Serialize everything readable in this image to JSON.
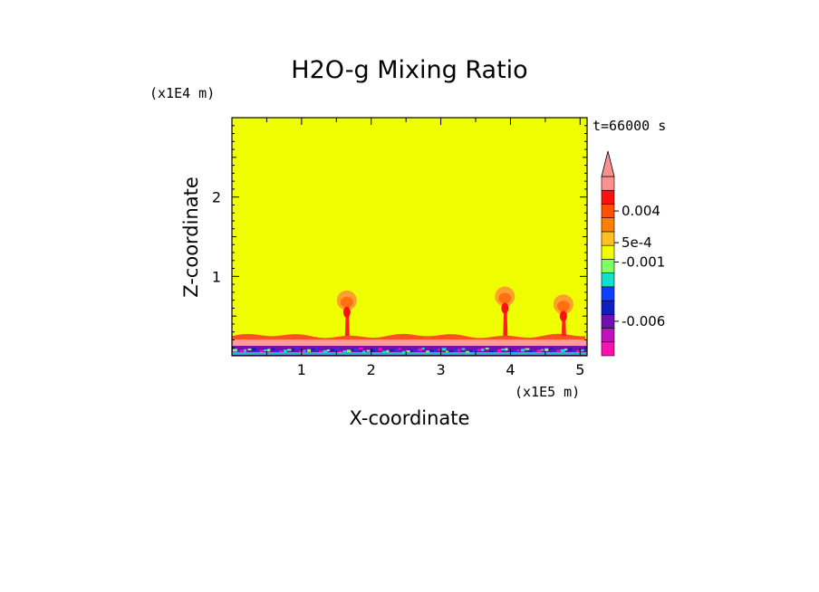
{
  "chart_data": {
    "type": "heatmap",
    "title": "H2O-g Mixing Ratio",
    "xlabel": "X-coordinate",
    "ylabel": "Z-coordinate",
    "x_scale_label": "(x1E5 m)",
    "y_scale_label": "(x1E4 m)",
    "time_label": "t=66000 s",
    "xlim": [
      0,
      5.1
    ],
    "ylim": [
      0,
      3.0
    ],
    "x_ticks": [
      1,
      2,
      3,
      4,
      5
    ],
    "x_tick_labels": [
      "1",
      "2",
      "3",
      "4",
      "5"
    ],
    "y_ticks": [
      1,
      2
    ],
    "y_tick_labels": [
      "1",
      "2"
    ],
    "background_value_color": "#f0ff00",
    "colorbar": {
      "colors": [
        "#ff10b0",
        "#c010c0",
        "#7010b0",
        "#1020c0",
        "#1040ff",
        "#10e0d0",
        "#80ff60",
        "#f0ff00",
        "#ffc020",
        "#ff8000",
        "#ff5000",
        "#ff1010",
        "#ff9090"
      ],
      "extend_top_color": "#ff9090",
      "labels": [
        "0.004",
        "5e-4",
        "-0.001",
        "-0.006"
      ],
      "label_values": [
        0.004,
        0.0005,
        -0.001,
        -0.006
      ]
    },
    "features": {
      "surface_layer_top": 0.25,
      "plumes": [
        {
          "x": 1.65,
          "top": 0.8
        },
        {
          "x": 3.92,
          "top": 0.85
        },
        {
          "x": 4.76,
          "top": 0.75
        }
      ]
    }
  }
}
